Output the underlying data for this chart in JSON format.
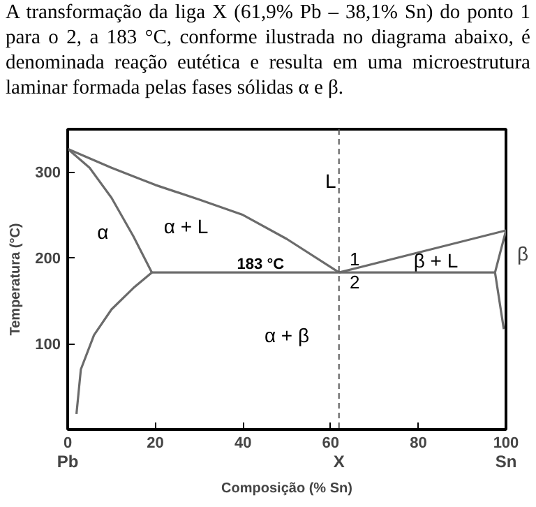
{
  "chart_data": {
    "type": "line",
    "title": "A transformação da liga X (61,9% Pb – 38,1% Sn) do ponto 1 para o 2, a 183 °C, conforme ilustrada no diagrama abaixo, é denominada reação eutética e resulta em uma microestrutura laminar formada pelas fases sólidas α e β.",
    "xlabel": "Composição (% Sn)",
    "ylabel": "Temperatura (°C)",
    "xlim": [
      0,
      100
    ],
    "ylim": [
      0,
      350
    ],
    "xticks": [
      0,
      20,
      40,
      60,
      80,
      100
    ],
    "yticks": [
      100,
      200,
      300
    ],
    "grid": false,
    "line_style": "solid",
    "marker": "none",
    "series": [
      {
        "color": "#6b6b6b",
        "x": [
          0,
          10,
          20,
          30,
          40,
          50,
          61.9
        ],
        "values": [
          327,
          305,
          285,
          268,
          250,
          222,
          183
        ]
      },
      {
        "color": "#6b6b6b",
        "x": [
          61.9,
          100
        ],
        "values": [
          183,
          232
        ]
      },
      {
        "color": "#6b6b6b",
        "x": [
          0,
          5,
          10,
          15,
          19.2
        ],
        "values": [
          327,
          305,
          270,
          225,
          183
        ]
      },
      {
        "color": "#6b6b6b",
        "x": [
          19.2,
          15,
          10,
          6,
          3,
          2
        ],
        "values": [
          183,
          165,
          140,
          110,
          70,
          18
        ]
      },
      {
        "color": "#6b6b6b",
        "x": [
          19.2,
          97.5
        ],
        "values": [
          183,
          183
        ]
      },
      {
        "color": "#6b6b6b",
        "x": [
          100,
          97.5,
          99.5
        ],
        "values": [
          232,
          183,
          117
        ]
      }
    ],
    "ref_lines": [
      {
        "axis": "x",
        "value": 61.9,
        "label": null,
        "color": "#555555",
        "line_style": "dashed"
      }
    ],
    "annotations": [
      "α",
      "α + L",
      "L",
      "β + L",
      "β",
      "α + β",
      "183 °C",
      "1",
      "2",
      "X",
      "Pb",
      "Sn"
    ]
  }
}
